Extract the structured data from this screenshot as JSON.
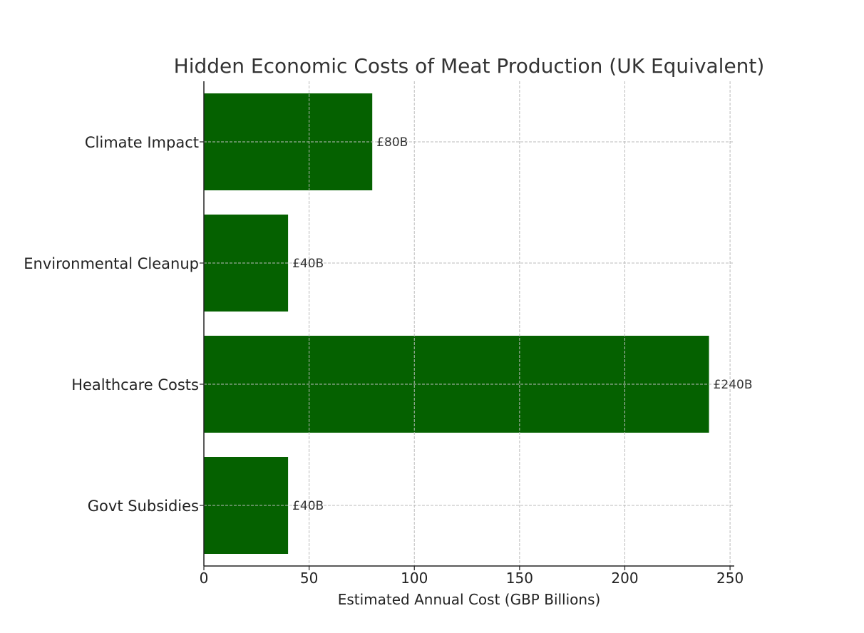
{
  "chart_data": {
    "type": "bar",
    "orientation": "horizontal",
    "title": "Hidden Economic Costs of Meat Production (UK Equivalent)",
    "xlabel": "Estimated Annual Cost (GBP Billions)",
    "ylabel": "",
    "categories": [
      "Climate Impact",
      "Environmental Cleanup",
      "Healthcare Costs",
      "Govt Subsidies"
    ],
    "values": [
      80,
      40,
      240,
      40
    ],
    "data_labels": [
      "£80B",
      "£40B",
      "£240B",
      "£40B"
    ],
    "xlim": [
      0,
      252
    ],
    "xticks": [
      0,
      50,
      100,
      150,
      200,
      250
    ],
    "grid": true,
    "grid_style": "dashed",
    "bar_color": "#056100",
    "legend": "none"
  }
}
